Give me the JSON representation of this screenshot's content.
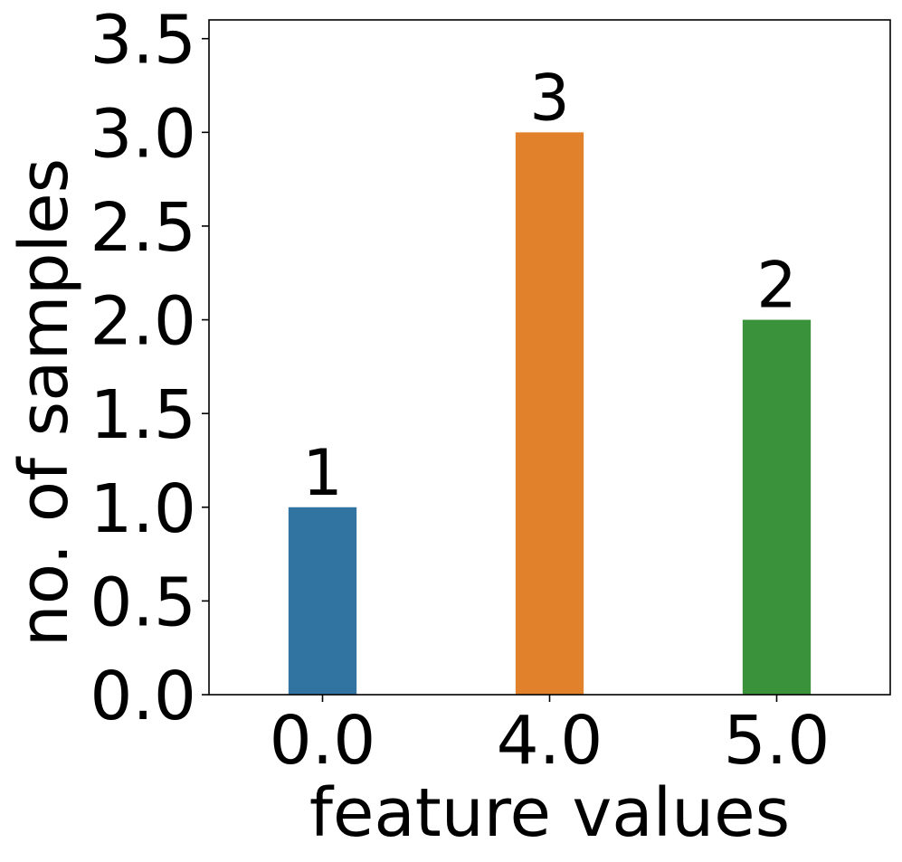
{
  "chart_data": {
    "type": "bar",
    "categories": [
      "0.0",
      "4.0",
      "5.0"
    ],
    "values": [
      1,
      3,
      2
    ],
    "data_labels": [
      "1",
      "3",
      "2"
    ],
    "colors": [
      "#3274a1",
      "#e1812c",
      "#3a923a"
    ],
    "title": "",
    "xlabel": "feature values",
    "ylabel": "no. of samples",
    "ylim": [
      0,
      3.6
    ],
    "yticks": [
      0.0,
      0.5,
      1.0,
      1.5,
      2.0,
      2.5,
      3.0,
      3.5
    ],
    "ytick_labels": [
      "0.0",
      "0.5",
      "1.0",
      "1.5",
      "2.0",
      "2.5",
      "3.0",
      "3.5"
    ],
    "grid": false,
    "legend": "none"
  }
}
